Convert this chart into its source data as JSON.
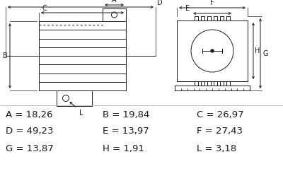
{
  "bg_color": "#ffffff",
  "line_color": "#1a1a1a",
  "text_color": "#1a1a1a",
  "measurements": [
    {
      "label": "A",
      "value": "18,26"
    },
    {
      "label": "B",
      "value": "19,84"
    },
    {
      "label": "C",
      "value": "26,97"
    },
    {
      "label": "D",
      "value": "49,23"
    },
    {
      "label": "E",
      "value": "13,97"
    },
    {
      "label": "F",
      "value": "27,43"
    },
    {
      "label": "G",
      "value": "13,87"
    },
    {
      "label": "H",
      "value": "1,91"
    },
    {
      "label": "L",
      "value": "3,18"
    }
  ],
  "figsize": [
    4.0,
    2.49
  ],
  "dpi": 100
}
